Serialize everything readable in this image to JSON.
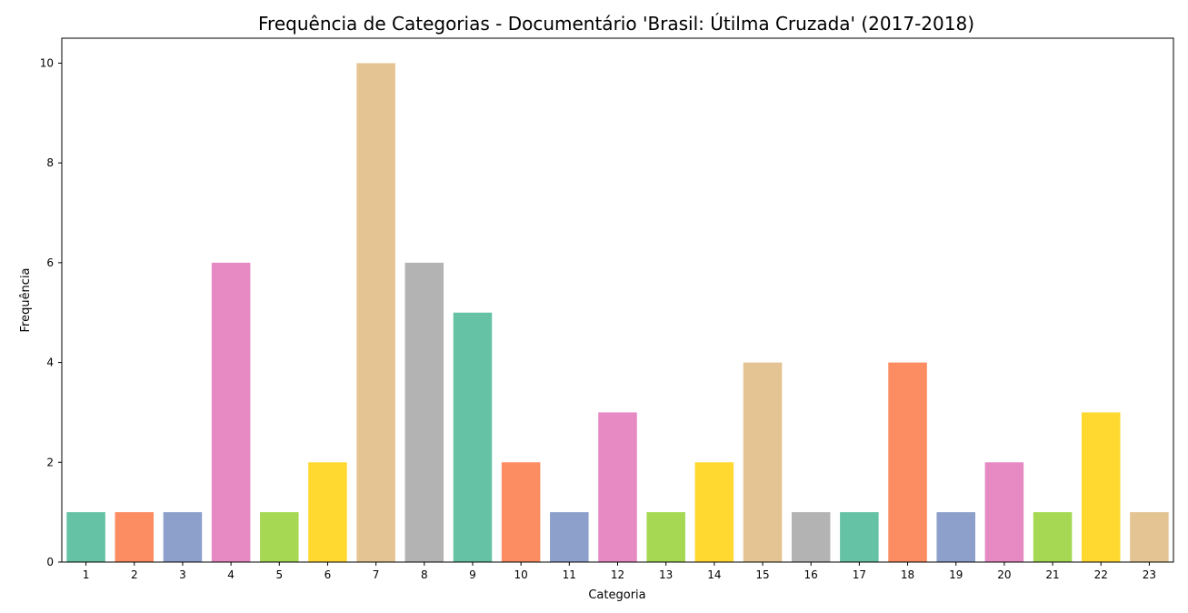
{
  "chart_data": {
    "type": "bar",
    "title": "Frequência de Categorias - Documentário 'Brasil: Útilma Cruzada' (2017-2018)",
    "xlabel": "Categoria",
    "ylabel": "Frequência",
    "categories": [
      "1",
      "2",
      "3",
      "4",
      "5",
      "6",
      "7",
      "8",
      "9",
      "10",
      "11",
      "12",
      "13",
      "14",
      "15",
      "16",
      "17",
      "18",
      "19",
      "20",
      "21",
      "22",
      "23"
    ],
    "values": [
      1,
      1,
      1,
      6,
      1,
      2,
      10,
      6,
      5,
      2,
      1,
      3,
      1,
      2,
      4,
      1,
      1,
      4,
      1,
      2,
      1,
      3,
      1
    ],
    "ylim": [
      0,
      10.5
    ],
    "yticks": [
      0,
      2,
      4,
      6,
      8,
      10
    ],
    "grid": false,
    "palette": [
      "#66c2a5",
      "#fc8d62",
      "#8da0cb",
      "#e78ac3",
      "#a6d854",
      "#ffd92f",
      "#e5c494",
      "#b3b3b3"
    ]
  }
}
